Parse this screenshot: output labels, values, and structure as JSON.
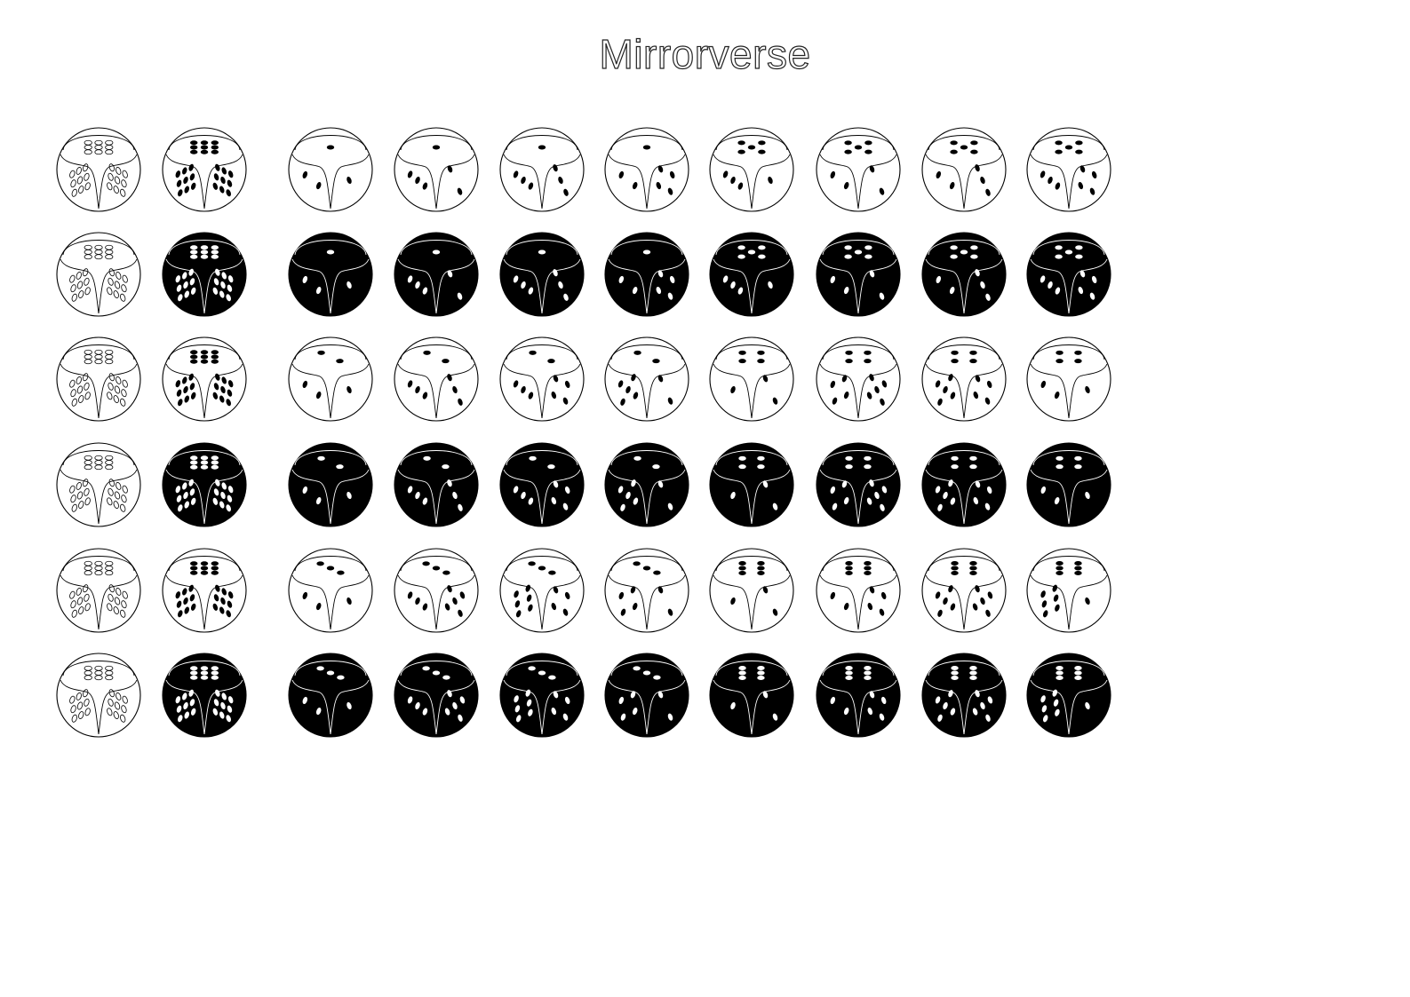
{
  "title": "Mirrorverse",
  "colors": {
    "ink": "#000000",
    "paper": "#ffffff"
  },
  "columns": [
    "template-outline",
    "template-solid",
    "d1",
    "d2",
    "d3",
    "d4",
    "d5",
    "d6",
    "d7",
    "d8"
  ],
  "rows": [
    {
      "fill": "white",
      "dice": [
        [
          1,
          2,
          1
        ],
        [
          1,
          3,
          2
        ],
        [
          1,
          3,
          3
        ],
        [
          1,
          2,
          4
        ],
        [
          5,
          3,
          1
        ],
        [
          5,
          2,
          2
        ],
        [
          5,
          2,
          3
        ],
        [
          5,
          3,
          4
        ]
      ]
    },
    {
      "fill": "black",
      "dice": [
        [
          1,
          2,
          1
        ],
        [
          1,
          3,
          2
        ],
        [
          1,
          3,
          3
        ],
        [
          1,
          2,
          4
        ],
        [
          5,
          3,
          1
        ],
        [
          5,
          2,
          2
        ],
        [
          5,
          2,
          3
        ],
        [
          5,
          3,
          4
        ]
      ]
    },
    {
      "fill": "white",
      "dice": [
        [
          2,
          2,
          1
        ],
        [
          2,
          3,
          3
        ],
        [
          2,
          3,
          4
        ],
        [
          2,
          5,
          2
        ],
        [
          4,
          1,
          2
        ],
        [
          4,
          4,
          5
        ],
        [
          4,
          5,
          4
        ],
        [
          4,
          2,
          1
        ]
      ]
    },
    {
      "fill": "black",
      "dice": [
        [
          2,
          2,
          1
        ],
        [
          2,
          3,
          3
        ],
        [
          2,
          3,
          4
        ],
        [
          2,
          5,
          2
        ],
        [
          4,
          1,
          2
        ],
        [
          4,
          4,
          5
        ],
        [
          4,
          5,
          4
        ],
        [
          4,
          2,
          1
        ]
      ]
    },
    {
      "fill": "white",
      "dice": [
        [
          3,
          2,
          1
        ],
        [
          3,
          3,
          5
        ],
        [
          3,
          6,
          4
        ],
        [
          3,
          4,
          2
        ],
        [
          6,
          1,
          2
        ],
        [
          6,
          2,
          4
        ],
        [
          6,
          5,
          5
        ],
        [
          6,
          6,
          1
        ]
      ]
    },
    {
      "fill": "black",
      "dice": [
        [
          3,
          2,
          1
        ],
        [
          3,
          3,
          5
        ],
        [
          3,
          6,
          4
        ],
        [
          3,
          4,
          2
        ],
        [
          6,
          1,
          2
        ],
        [
          6,
          2,
          4
        ],
        [
          6,
          5,
          5
        ],
        [
          6,
          6,
          1
        ]
      ]
    }
  ]
}
